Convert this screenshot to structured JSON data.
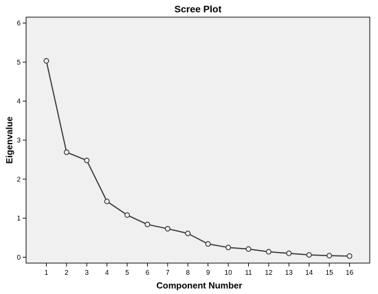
{
  "chart_data": {
    "type": "line",
    "title": "Scree Plot",
    "xlabel": "Component Number",
    "ylabel": "Eigenvalue",
    "x": [
      1,
      2,
      3,
      4,
      5,
      6,
      7,
      8,
      9,
      10,
      11,
      12,
      13,
      14,
      15,
      16
    ],
    "y": [
      5.03,
      2.69,
      2.48,
      1.43,
      1.08,
      0.84,
      0.73,
      0.61,
      0.34,
      0.25,
      0.21,
      0.14,
      0.1,
      0.06,
      0.04,
      0.03
    ],
    "xlim": [
      0,
      17
    ],
    "ylim": [
      -0.15,
      6.15
    ],
    "yticks": [
      0,
      1,
      2,
      3,
      4,
      5,
      6
    ],
    "xticks": [
      1,
      2,
      3,
      4,
      5,
      6,
      7,
      8,
      9,
      10,
      11,
      12,
      13,
      14,
      15,
      16
    ],
    "grid": false,
    "colors": {
      "plot_background": "#f0f0f0",
      "line": "#333333",
      "axis": "#000000"
    }
  }
}
